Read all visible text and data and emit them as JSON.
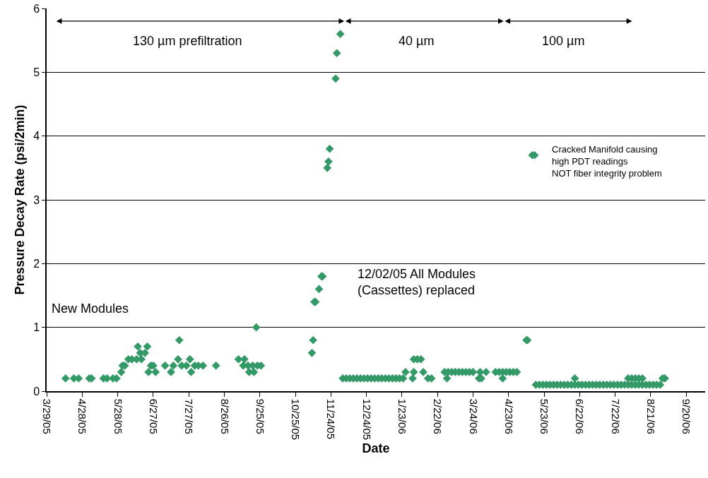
{
  "chart_data": {
    "type": "scatter",
    "xlabel": "Date",
    "ylabel": "Pressure Decay Rate (psi/2min)",
    "xlim": [
      "2005-03-29",
      "2006-10-06"
    ],
    "xticks": [
      {
        "value": "2005-03-29",
        "label": "3/29/05"
      },
      {
        "value": "2005-04-28",
        "label": "4/28/05"
      },
      {
        "value": "2005-05-28",
        "label": "5/28/05"
      },
      {
        "value": "2005-06-27",
        "label": "6/27/05"
      },
      {
        "value": "2005-07-27",
        "label": "7/27/05"
      },
      {
        "value": "2005-08-26",
        "label": "8/26/05"
      },
      {
        "value": "2005-09-25",
        "label": "9/25/05"
      },
      {
        "value": "2005-10-25",
        "label": "10/25/05"
      },
      {
        "value": "2005-11-24",
        "label": "11/24/05"
      },
      {
        "value": "2005-12-24",
        "label": "12/24/05"
      },
      {
        "value": "2006-01-23",
        "label": "1/23/06"
      },
      {
        "value": "2006-02-22",
        "label": "2/22/06"
      },
      {
        "value": "2006-03-24",
        "label": "3/24/06"
      },
      {
        "value": "2006-04-23",
        "label": "4/23/06"
      },
      {
        "value": "2006-05-23",
        "label": "5/23/06"
      },
      {
        "value": "2006-06-22",
        "label": "6/22/06"
      },
      {
        "value": "2006-07-22",
        "label": "7/22/06"
      },
      {
        "value": "2006-08-21",
        "label": "8/21/06"
      },
      {
        "value": "2006-09-20",
        "label": "9/20/06"
      }
    ],
    "ylim": [
      0,
      6
    ],
    "yticks": [
      0,
      1,
      2,
      3,
      4,
      5,
      6
    ],
    "grid": "y",
    "marker": "diamond",
    "series": [
      {
        "color": "#339966",
        "x": [
          "2005-04-14",
          "2005-04-21",
          "2005-04-25",
          "2005-05-04",
          "2005-05-06",
          "2005-05-16",
          "2005-05-19",
          "2005-05-24",
          "2005-05-27",
          "2005-05-31",
          "2005-06-01",
          "2005-06-03",
          "2005-06-06",
          "2005-06-09",
          "2005-06-13",
          "2005-06-14",
          "2005-06-16",
          "2005-06-17",
          "2005-06-20",
          "2005-06-22",
          "2005-06-23",
          "2005-06-25",
          "2005-06-27",
          "2005-06-29",
          "2005-07-07",
          "2005-07-12",
          "2005-07-14",
          "2005-07-18",
          "2005-07-19",
          "2005-07-21",
          "2005-07-25",
          "2005-07-28",
          "2005-07-29",
          "2005-08-01",
          "2005-08-04",
          "2005-08-08",
          "2005-08-19",
          "2005-09-07",
          "2005-09-11",
          "2005-09-12",
          "2005-09-15",
          "2005-09-16",
          "2005-09-19",
          "2005-09-20",
          "2005-09-22",
          "2005-09-23",
          "2005-09-26",
          "2005-11-08",
          "2005-11-09",
          "2005-11-10",
          "2005-11-11",
          "2005-11-14",
          "2005-11-16",
          "2005-11-17",
          "2005-11-21",
          "2005-11-22",
          "2005-11-23",
          "2005-11-28",
          "2005-11-29",
          "2005-12-02",
          "2005-12-04",
          "2005-12-07",
          "2005-12-10",
          "2005-12-13",
          "2005-12-16",
          "2005-12-19",
          "2005-12-22",
          "2005-12-25",
          "2005-12-28",
          "2005-12-31",
          "2006-01-03",
          "2006-01-06",
          "2006-01-09",
          "2006-01-12",
          "2006-01-15",
          "2006-01-18",
          "2006-01-21",
          "2006-01-24",
          "2006-01-26",
          "2006-02-01",
          "2006-02-02",
          "2006-02-02",
          "2006-02-05",
          "2006-02-08",
          "2006-02-10",
          "2006-02-14",
          "2006-02-17",
          "2006-02-28",
          "2006-03-02",
          "2006-03-03",
          "2006-03-06",
          "2006-03-09",
          "2006-03-12",
          "2006-03-15",
          "2006-03-18",
          "2006-03-21",
          "2006-03-24",
          "2006-03-29",
          "2006-03-30",
          "2006-03-31",
          "2006-04-04",
          "2006-04-12",
          "2006-04-15",
          "2006-04-18",
          "2006-04-18",
          "2006-04-21",
          "2006-04-24",
          "2006-04-27",
          "2006-04-30",
          "2006-05-08",
          "2006-05-09",
          "2006-05-13",
          "2006-05-15",
          "2006-05-16",
          "2006-05-19",
          "2006-05-22",
          "2006-05-25",
          "2006-05-28",
          "2006-05-31",
          "2006-06-03",
          "2006-06-06",
          "2006-06-09",
          "2006-06-12",
          "2006-06-15",
          "2006-06-18",
          "2006-06-21",
          "2006-06-24",
          "2006-06-27",
          "2006-06-30",
          "2006-07-03",
          "2006-07-06",
          "2006-07-09",
          "2006-07-12",
          "2006-07-15",
          "2006-07-18",
          "2006-07-21",
          "2006-07-24",
          "2006-07-27",
          "2006-07-30",
          "2006-08-02",
          "2006-08-05",
          "2006-08-08",
          "2006-08-11",
          "2006-08-14",
          "2006-08-17",
          "2006-08-20",
          "2006-08-23",
          "2006-08-26",
          "2006-08-29",
          "2006-06-18",
          "2006-08-02",
          "2006-08-05",
          "2006-08-08",
          "2006-08-11",
          "2006-08-14",
          "2006-08-31",
          "2006-09-02"
        ],
        "values": [
          0.2,
          0.2,
          0.2,
          0.2,
          0.2,
          0.2,
          0.2,
          0.2,
          0.2,
          0.3,
          0.4,
          0.4,
          0.5,
          0.5,
          0.5,
          0.7,
          0.6,
          0.5,
          0.6,
          0.7,
          0.3,
          0.4,
          0.4,
          0.3,
          0.4,
          0.3,
          0.4,
          0.5,
          0.8,
          0.4,
          0.4,
          0.5,
          0.3,
          0.4,
          0.4,
          0.4,
          0.4,
          0.5,
          0.4,
          0.5,
          0.4,
          0.3,
          0.4,
          0.3,
          1.0,
          0.4,
          0.4,
          0.6,
          0.8,
          1.4,
          1.4,
          1.6,
          1.8,
          1.8,
          3.5,
          3.6,
          3.8,
          4.9,
          5.3,
          5.6,
          0.2,
          0.2,
          0.2,
          0.2,
          0.2,
          0.2,
          0.2,
          0.2,
          0.2,
          0.2,
          0.2,
          0.2,
          0.2,
          0.2,
          0.2,
          0.2,
          0.2,
          0.2,
          0.3,
          0.2,
          0.3,
          0.5,
          0.5,
          0.5,
          0.3,
          0.2,
          0.2,
          0.3,
          0.2,
          0.3,
          0.3,
          0.3,
          0.3,
          0.3,
          0.3,
          0.3,
          0.3,
          0.2,
          0.3,
          0.2,
          0.3,
          0.3,
          0.3,
          0.3,
          0.2,
          0.3,
          0.3,
          0.3,
          0.3,
          0.8,
          0.8,
          3.7,
          3.7,
          0.1,
          0.1,
          0.1,
          0.1,
          0.1,
          0.1,
          0.1,
          0.1,
          0.1,
          0.1,
          0.1,
          0.1,
          0.1,
          0.1,
          0.1,
          0.1,
          0.1,
          0.1,
          0.1,
          0.1,
          0.1,
          0.1,
          0.1,
          0.1,
          0.1,
          0.1,
          0.1,
          0.1,
          0.1,
          0.1,
          0.1,
          0.1,
          0.1,
          0.1,
          0.1,
          0.1,
          0.2,
          0.2,
          0.2,
          0.2,
          0.2,
          0.2,
          0.2,
          0.2
        ]
      }
    ],
    "annotations": [
      "130 µm prefiltration",
      "40 µm",
      "100 µm",
      "New Modules",
      "12/02/05 All Modules\n(Cassettes) replaced",
      "Cracked Manifold causing\nhigh PDT readings\nNOT fiber integrity problem"
    ]
  }
}
